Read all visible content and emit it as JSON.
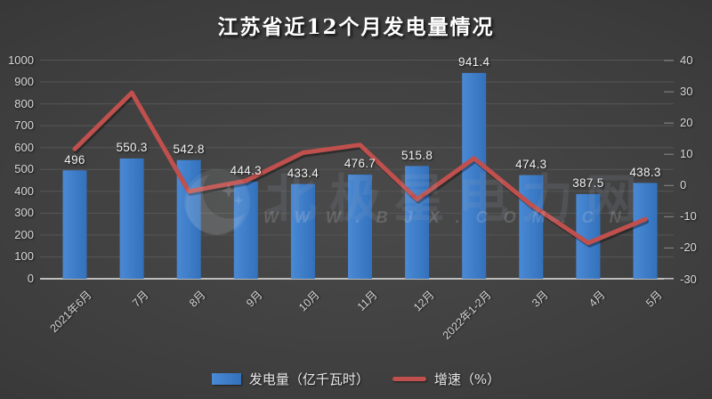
{
  "title": "江苏省近12个月发电量情况",
  "chart_data": {
    "type": "combo_bar_line",
    "title": "江苏省近12个月发电量情况",
    "categories": [
      "2021年6月",
      "7月",
      "8月",
      "9月",
      "10月",
      "11月",
      "12月",
      "2022年1-2月",
      "3月",
      "4月",
      "5月"
    ],
    "series": [
      {
        "name": "发电量（亿千瓦时）",
        "type": "bar",
        "axis": "left",
        "values": [
          496,
          550.3,
          542.8,
          444.3,
          433.4,
          476.7,
          515.8,
          941.4,
          474.3,
          387.5,
          438.3
        ],
        "data_labels": [
          "496",
          "550.3",
          "542.8",
          "444.3",
          "433.4",
          "476.7",
          "515.8",
          "941.4",
          "474.3",
          "387.5",
          "438.3"
        ]
      },
      {
        "name": "增速（%）",
        "type": "line",
        "axis": "right",
        "values_estimated_from_gridlines": true,
        "values": [
          11.7,
          29.7,
          -1.9,
          1.5,
          10.5,
          13.0,
          -4.4,
          8.7,
          -6.2,
          -18.4,
          -10.8
        ]
      }
    ],
    "left_axis": {
      "min": 0,
      "max": 1000,
      "step": 100,
      "ticks": [
        0,
        100,
        200,
        300,
        400,
        500,
        600,
        700,
        800,
        900,
        1000
      ]
    },
    "right_axis": {
      "min": -30,
      "max": 40,
      "step": 10,
      "ticks": [
        40,
        30,
        20,
        10,
        0,
        -10,
        -20,
        -30
      ]
    },
    "grid": true,
    "legend_position": "bottom"
  },
  "legend": {
    "items": [
      {
        "label": "发电量（亿千瓦时）",
        "swatch": "bar"
      },
      {
        "label": "增速（%）",
        "swatch": "line"
      }
    ]
  },
  "watermark": {
    "logo": "bjx-crescent-star-logo",
    "brand_text": "北极星电力网",
    "site_text": "WWW.BJX.COM.CN"
  },
  "colors": {
    "background": "#3c3c3c",
    "bar": "#3b7cc8",
    "bar_light": "#4a89d4",
    "bar_dark": "#3371bc",
    "line": "#c0504d",
    "grid": "#565656",
    "baseline": "#bdbdbd",
    "right_tick": "#8a8a8a",
    "axis_text": "#d8d8d8",
    "data_label_text": "#f2f2f2",
    "title_text": "#ffffff"
  }
}
